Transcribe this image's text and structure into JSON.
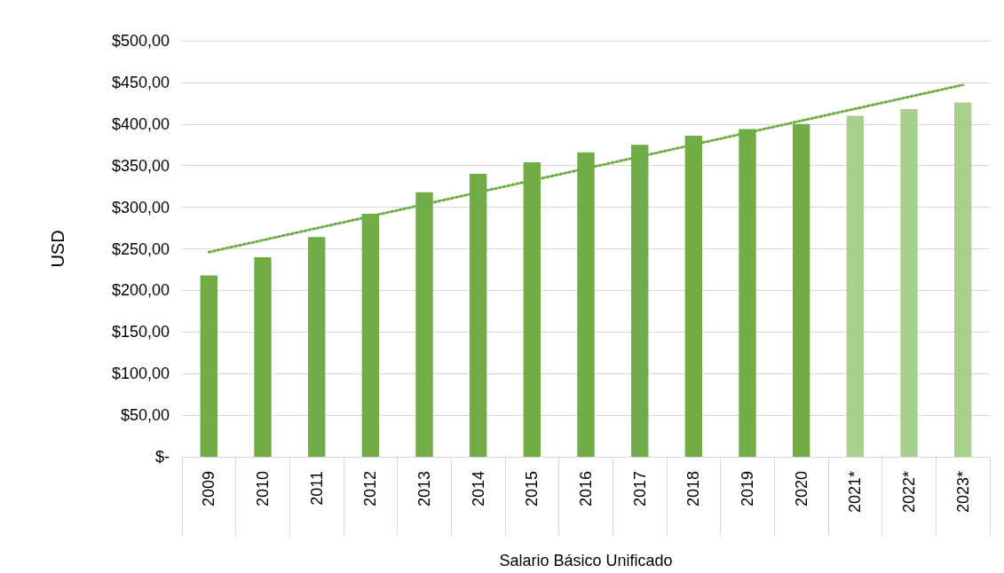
{
  "chart_data": {
    "type": "bar",
    "xlabel": "Salario Básico Unificado",
    "ylabel": "USD",
    "categories": [
      "2009",
      "2010",
      "2011",
      "2012",
      "2013",
      "2014",
      "2015",
      "2016",
      "2017",
      "2018",
      "2019",
      "2020",
      "2021*",
      "2022*",
      "2023*"
    ],
    "series": [
      {
        "values": [
          218,
          240,
          264,
          292,
          318,
          340,
          354,
          366,
          375,
          386,
          394,
          400,
          410,
          418,
          426
        ],
        "colors": [
          "#70ad47",
          "#70ad47",
          "#70ad47",
          "#70ad47",
          "#70ad47",
          "#70ad47",
          "#70ad47",
          "#70ad47",
          "#70ad47",
          "#70ad47",
          "#70ad47",
          "#70ad47",
          "#a9d18e",
          "#a9d18e",
          "#a9d18e"
        ]
      },
      {
        "type": "line",
        "values": [
          246,
          null,
          null,
          null,
          null,
          null,
          null,
          null,
          null,
          null,
          null,
          null,
          null,
          null,
          447
        ],
        "color": "#70ad47",
        "line_style": "dotted",
        "marker": "none"
      }
    ],
    "ylim": [
      0,
      500
    ],
    "yticks": [
      {
        "value": 0,
        "label": "$-"
      },
      {
        "value": 50,
        "label": "$50,00"
      },
      {
        "value": 100,
        "label": "$100,00"
      },
      {
        "value": 150,
        "label": "$150,00"
      },
      {
        "value": 200,
        "label": "$200,00"
      },
      {
        "value": 250,
        "label": "$250,00"
      },
      {
        "value": 300,
        "label": "$300,00"
      },
      {
        "value": 350,
        "label": "$350,00"
      },
      {
        "value": 400,
        "label": "$400,00"
      },
      {
        "value": 450,
        "label": "$450,00"
      },
      {
        "value": 500,
        "label": "$500,00"
      }
    ],
    "grid": "y"
  }
}
